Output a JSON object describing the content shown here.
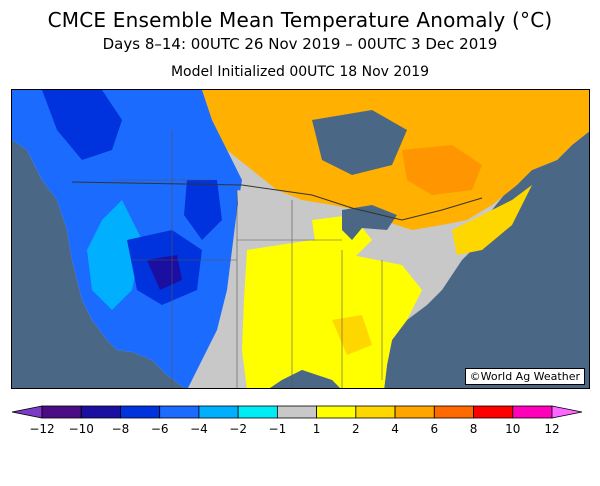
{
  "header": {
    "title": "CMCE Ensemble Mean Temperature Anomaly (°C)",
    "subtitle": "Days 8–14: 00UTC 26 Nov 2019 – 00UTC 3 Dec 2019",
    "initialized": "Model Initialized 00UTC 18 Nov 2019"
  },
  "map": {
    "credit": "©World Ag Weather"
  },
  "legend": {
    "ticks": [
      "−12",
      "−10",
      "−8",
      "−6",
      "−4",
      "−2",
      "−1",
      "1",
      "2",
      "4",
      "6",
      "8",
      "10",
      "12"
    ],
    "colors": [
      "#4b0c84",
      "#1a0fa0",
      "#0033dd",
      "#1c6bff",
      "#00b0ff",
      "#00ecf5",
      "#c8c8c8",
      "#ffff00",
      "#ffd700",
      "#ffa500",
      "#ff6a00",
      "#ff0000",
      "#ff00bb"
    ],
    "low_arrow_color": "#7a3cc7",
    "high_arrow_color": "#ff66ff"
  }
}
